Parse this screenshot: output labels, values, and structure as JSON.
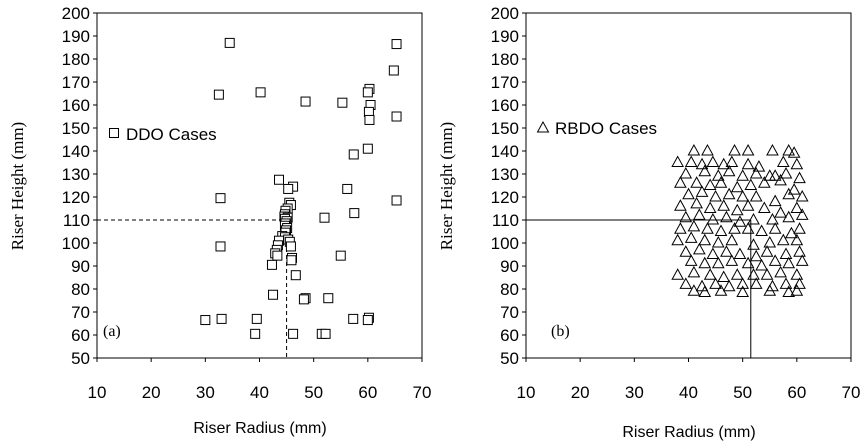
{
  "chart_data": [
    {
      "type": "scatter",
      "panel_label": "(a)",
      "xlabel": "Riser Radius (mm)",
      "ylabel": "Riser Height (mm)",
      "xlim": [
        10,
        70
      ],
      "ylim": [
        50,
        200
      ],
      "xticks": [
        10,
        20,
        30,
        40,
        50,
        60,
        70
      ],
      "yticks": [
        50,
        60,
        70,
        80,
        90,
        100,
        110,
        120,
        130,
        140,
        150,
        160,
        170,
        180,
        190,
        200
      ],
      "legend": "DDO Cases",
      "legend_position": "middle-left",
      "marker": "square",
      "grid": false,
      "reference_lines": {
        "x": 45,
        "y": 110,
        "style": "dashed"
      },
      "points": [
        [
          34.5,
          187
        ],
        [
          65.3,
          186.5
        ],
        [
          64.8,
          175
        ],
        [
          60.3,
          167
        ],
        [
          60,
          165.5
        ],
        [
          32.5,
          164.5
        ],
        [
          40.2,
          165.5
        ],
        [
          48.5,
          161.5
        ],
        [
          55.3,
          161
        ],
        [
          60.5,
          160
        ],
        [
          60.2,
          157
        ],
        [
          60.3,
          153.5
        ],
        [
          65.3,
          155
        ],
        [
          57.4,
          138.5
        ],
        [
          60,
          141
        ],
        [
          43.6,
          127.5
        ],
        [
          46.2,
          124.5
        ],
        [
          45.3,
          123.5
        ],
        [
          56.2,
          123.5
        ],
        [
          32.8,
          119.5
        ],
        [
          65.3,
          118.5
        ],
        [
          45.5,
          117.5
        ],
        [
          45.8,
          116.5
        ],
        [
          45.2,
          115
        ],
        [
          44.8,
          114
        ],
        [
          57.5,
          113
        ],
        [
          44.7,
          112.5
        ],
        [
          44.6,
          111.5
        ],
        [
          45.2,
          111
        ],
        [
          52,
          111
        ],
        [
          44.7,
          110.5
        ],
        [
          45,
          109.5
        ],
        [
          44.8,
          108.5
        ],
        [
          44.7,
          107.5
        ],
        [
          45.1,
          106.5
        ],
        [
          44.9,
          105.5
        ],
        [
          44.8,
          104.5
        ],
        [
          44.2,
          103
        ],
        [
          44.7,
          102.5
        ],
        [
          45.3,
          101.5
        ],
        [
          43.6,
          101
        ],
        [
          45.6,
          100.5
        ],
        [
          43.4,
          99
        ],
        [
          32.8,
          98.5
        ],
        [
          45.8,
          98.5
        ],
        [
          43.2,
          97
        ],
        [
          42.9,
          95.5
        ],
        [
          43.3,
          94.5
        ],
        [
          55,
          94.5
        ],
        [
          46,
          93.5
        ],
        [
          45.9,
          92.5
        ],
        [
          42.3,
          90.5
        ],
        [
          46.7,
          86
        ],
        [
          42.5,
          77.5
        ],
        [
          48.5,
          76
        ],
        [
          48.2,
          75.5
        ],
        [
          52.7,
          76
        ],
        [
          30,
          66.5
        ],
        [
          33,
          67
        ],
        [
          39.5,
          67
        ],
        [
          57.3,
          67
        ],
        [
          60.2,
          67.5
        ],
        [
          60,
          66.5
        ],
        [
          39.2,
          60.5
        ],
        [
          46.2,
          60.5
        ],
        [
          51.5,
          60.5
        ],
        [
          52.2,
          60.5
        ]
      ]
    },
    {
      "type": "scatter",
      "panel_label": "(b)",
      "xlabel": "Riser Radius (mm)",
      "ylabel": "Riser Height (mm)",
      "xlim": [
        10,
        70
      ],
      "ylim": [
        50,
        200
      ],
      "xticks": [
        10,
        20,
        30,
        40,
        50,
        60,
        70
      ],
      "yticks": [
        50,
        60,
        70,
        80,
        90,
        100,
        110,
        120,
        130,
        140,
        150,
        160,
        170,
        180,
        190,
        200
      ],
      "legend": "RBDO Cases",
      "legend_position": "middle-left",
      "marker": "triangle",
      "grid": false,
      "reference_lines": {
        "x": 51.5,
        "y": 110,
        "style": "solid"
      },
      "points": [
        [
          41,
          140
        ],
        [
          43.5,
          140
        ],
        [
          48.5,
          140
        ],
        [
          51,
          140
        ],
        [
          55.5,
          140
        ],
        [
          58.5,
          140
        ],
        [
          59.5,
          139
        ],
        [
          38,
          135
        ],
        [
          40.5,
          135
        ],
        [
          42.5,
          134
        ],
        [
          44.5,
          135
        ],
        [
          46.5,
          134
        ],
        [
          48,
          135
        ],
        [
          51,
          134
        ],
        [
          53,
          133
        ],
        [
          57.5,
          135
        ],
        [
          60,
          134
        ],
        [
          39.5,
          130
        ],
        [
          43,
          131
        ],
        [
          45.5,
          129
        ],
        [
          47.5,
          131
        ],
        [
          50,
          129
        ],
        [
          52.5,
          130
        ],
        [
          55,
          129
        ],
        [
          56,
          129
        ],
        [
          58,
          130
        ],
        [
          60.5,
          128
        ],
        [
          38.5,
          126
        ],
        [
          41.5,
          126
        ],
        [
          44,
          125
        ],
        [
          46,
          126
        ],
        [
          49,
          124
        ],
        [
          51.5,
          125
        ],
        [
          54,
          126
        ],
        [
          57,
          127
        ],
        [
          59.5,
          123
        ],
        [
          40,
          121
        ],
        [
          42.5,
          122
        ],
        [
          45,
          120
        ],
        [
          47.5,
          121
        ],
        [
          50,
          120
        ],
        [
          52.5,
          120
        ],
        [
          56,
          118
        ],
        [
          58.5,
          121
        ],
        [
          61,
          120
        ],
        [
          38.5,
          116
        ],
        [
          41.5,
          117
        ],
        [
          44,
          115
        ],
        [
          46.5,
          116
        ],
        [
          49,
          114
        ],
        [
          51,
          116
        ],
        [
          54,
          115
        ],
        [
          57,
          113
        ],
        [
          60,
          115
        ],
        [
          39.5,
          111
        ],
        [
          42,
          112
        ],
        [
          44.5,
          110
        ],
        [
          47,
          111
        ],
        [
          49.5,
          109
        ],
        [
          52,
          110
        ],
        [
          55.5,
          110
        ],
        [
          58.5,
          111
        ],
        [
          61,
          112
        ],
        [
          38.5,
          106
        ],
        [
          41,
          107
        ],
        [
          43.5,
          106
        ],
        [
          46,
          105
        ],
        [
          48.5,
          106
        ],
        [
          51,
          106
        ],
        [
          53.5,
          105
        ],
        [
          56,
          106
        ],
        [
          59,
          104
        ],
        [
          60.5,
          106
        ],
        [
          38,
          101
        ],
        [
          40.5,
          102
        ],
        [
          43,
          101
        ],
        [
          45.5,
          100
        ],
        [
          48,
          101
        ],
        [
          52,
          99
        ],
        [
          55,
          100
        ],
        [
          57.5,
          101
        ],
        [
          60,
          101
        ],
        [
          39.5,
          96
        ],
        [
          42,
          97
        ],
        [
          44.5,
          95
        ],
        [
          47,
          96
        ],
        [
          49.5,
          95
        ],
        [
          52.5,
          94
        ],
        [
          54.5,
          96
        ],
        [
          58,
          95
        ],
        [
          60.5,
          96
        ],
        [
          40.5,
          92
        ],
        [
          43,
          91
        ],
        [
          45.5,
          91
        ],
        [
          48,
          92
        ],
        [
          51,
          91
        ],
        [
          53.5,
          90
        ],
        [
          56,
          92
        ],
        [
          58.5,
          91
        ],
        [
          61,
          92
        ],
        [
          38,
          86
        ],
        [
          41,
          87
        ],
        [
          44,
          86
        ],
        [
          46.5,
          85
        ],
        [
          49,
          86
        ],
        [
          52,
          86
        ],
        [
          54.5,
          86
        ],
        [
          57,
          87
        ],
        [
          60,
          86
        ],
        [
          39.5,
          82
        ],
        [
          42.5,
          81
        ],
        [
          45,
          82
        ],
        [
          47.5,
          81
        ],
        [
          50,
          82
        ],
        [
          52.5,
          82
        ],
        [
          55.5,
          81
        ],
        [
          58,
          82
        ],
        [
          60.5,
          82
        ],
        [
          41,
          79
        ],
        [
          43,
          78.5
        ],
        [
          46,
          79
        ],
        [
          50,
          78.5
        ],
        [
          55,
          79
        ],
        [
          58.5,
          78.5
        ],
        [
          60,
          79
        ]
      ]
    }
  ]
}
